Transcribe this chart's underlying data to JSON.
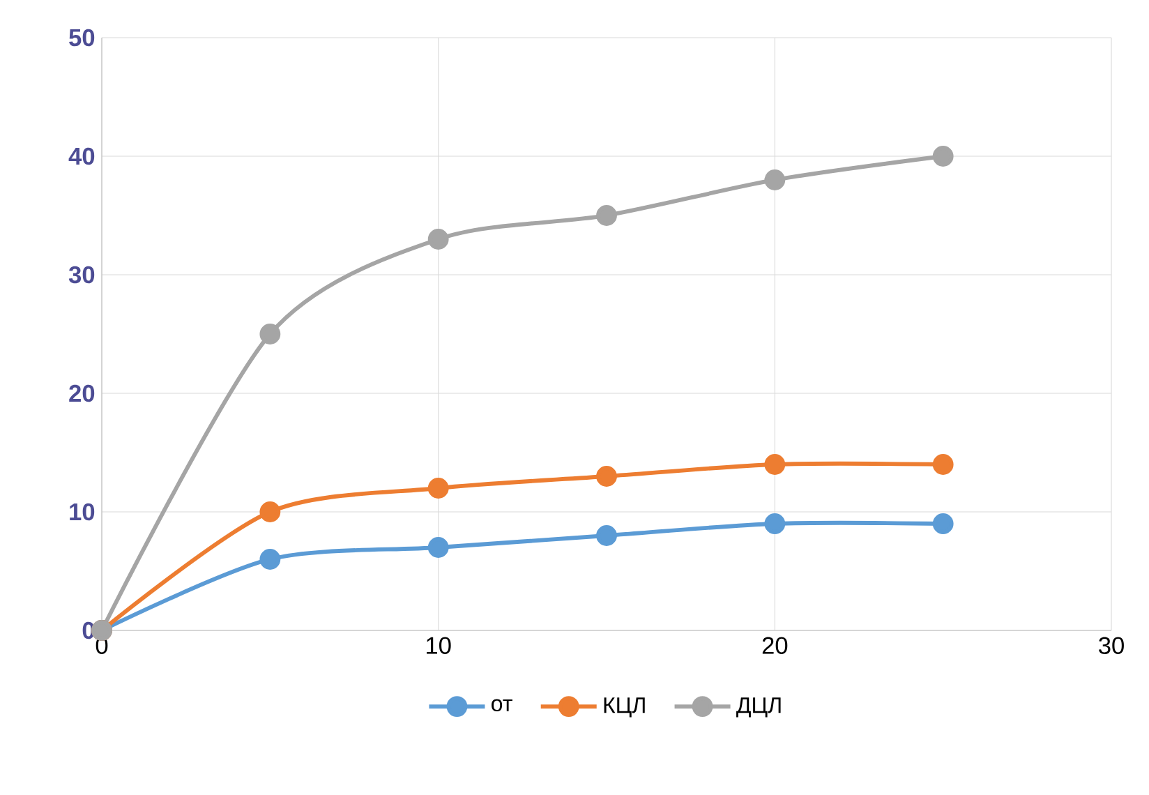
{
  "chart_data": {
    "type": "line",
    "x": [
      0,
      5,
      10,
      15,
      20,
      25
    ],
    "series": [
      {
        "name": "от",
        "color": "#5b9bd5",
        "values": [
          0,
          6,
          7,
          8,
          9,
          9
        ]
      },
      {
        "name": "КЦЛ",
        "color": "#ed7d31",
        "values": [
          0,
          10,
          12,
          13,
          14,
          14
        ]
      },
      {
        "name": "ДЦЛ",
        "color": "#a5a5a5",
        "values": [
          0,
          25,
          33,
          35,
          38,
          40
        ]
      }
    ],
    "xlim": [
      0,
      30
    ],
    "ylim": [
      0,
      50
    ],
    "xticks": [
      0,
      10,
      20,
      30
    ],
    "yticks": [
      0,
      10,
      20,
      30,
      40,
      50
    ],
    "grid": true,
    "legend": "bottom",
    "marker": "circle",
    "line_style": "solid"
  }
}
